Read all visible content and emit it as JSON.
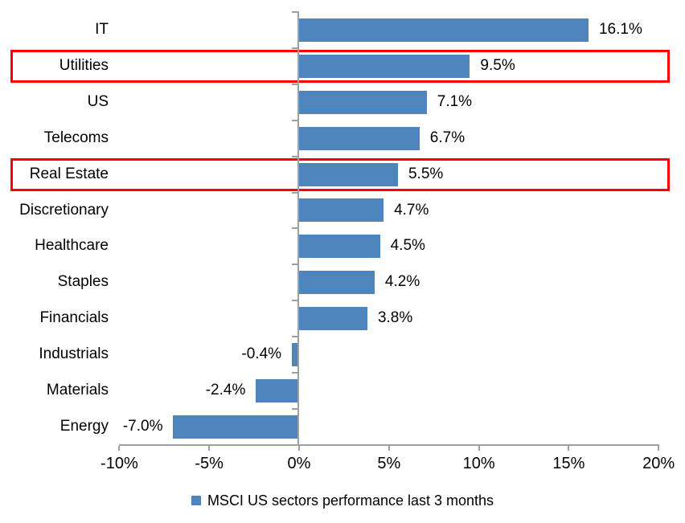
{
  "chart_data": {
    "type": "bar",
    "orientation": "horizontal",
    "title": "",
    "xlabel": "",
    "ylabel": "",
    "xlim": [
      -10,
      20
    ],
    "grid": false,
    "categories": [
      "IT",
      "Utilities",
      "US",
      "Telecoms",
      "Real Estate",
      "Discretionary",
      "Healthcare",
      "Staples",
      "Financials",
      "Industrials",
      "Materials",
      "Energy"
    ],
    "values": [
      16.1,
      9.5,
      7.1,
      6.7,
      5.5,
      4.7,
      4.5,
      4.2,
      3.8,
      -0.4,
      -2.4,
      -7.0
    ],
    "value_labels": [
      "16.1%",
      "9.5%",
      "7.1%",
      "6.7%",
      "5.5%",
      "4.7%",
      "4.5%",
      "4.2%",
      "3.8%",
      "-0.4%",
      "-2.4%",
      "-7.0%"
    ],
    "highlighted_categories": [
      "Utilities",
      "Real Estate"
    ],
    "x_ticks": {
      "values": [
        -10,
        -5,
        0,
        5,
        10,
        15,
        20
      ],
      "labels": [
        "-10%",
        "-5%",
        "0%",
        "5%",
        "10%",
        "15%",
        "20%"
      ]
    },
    "colors": {
      "bar": "#4E85BD",
      "axis": "#A0A0A0",
      "highlight_box": "#FF0000",
      "text": "#000000",
      "background": "#FFFFFF"
    },
    "legend": {
      "label": "MSCI US sectors performance last 3 months",
      "swatch_color": "#4E85BD",
      "position": "bottom-center"
    }
  }
}
